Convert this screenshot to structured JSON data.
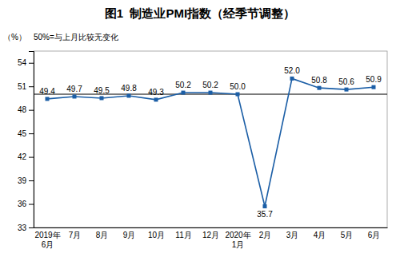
{
  "chart_data": {
    "type": "line",
    "title": "图1  制造业PMI指数（经季节调整）",
    "subtitle": "50%=与上月比较无变化",
    "ylabel": "（%）",
    "categories": [
      "2019年\n6月",
      "7月",
      "8月",
      "9月",
      "10月",
      "11月",
      "12月",
      "2020年\n1月",
      "2月",
      "3月",
      "4月",
      "5月",
      "6月"
    ],
    "values": [
      49.4,
      49.7,
      49.5,
      49.8,
      49.3,
      50.2,
      50.2,
      50.0,
      35.7,
      52.0,
      50.8,
      50.6,
      50.9
    ],
    "value_labels": [
      "49.4",
      "49.7",
      "49.5",
      "49.8",
      "49.3",
      "50.2",
      "50.2",
      "50.0",
      "35.7",
      "52.0",
      "50.8",
      "50.6",
      "50.9"
    ],
    "data_labels": true,
    "reference_line": 50.0,
    "color": "#1B5EA6",
    "marker": "square",
    "ylim": [
      33,
      55.5
    ],
    "yticks": [
      33,
      36,
      39,
      42,
      45,
      48,
      51,
      54
    ],
    "grid": false
  }
}
